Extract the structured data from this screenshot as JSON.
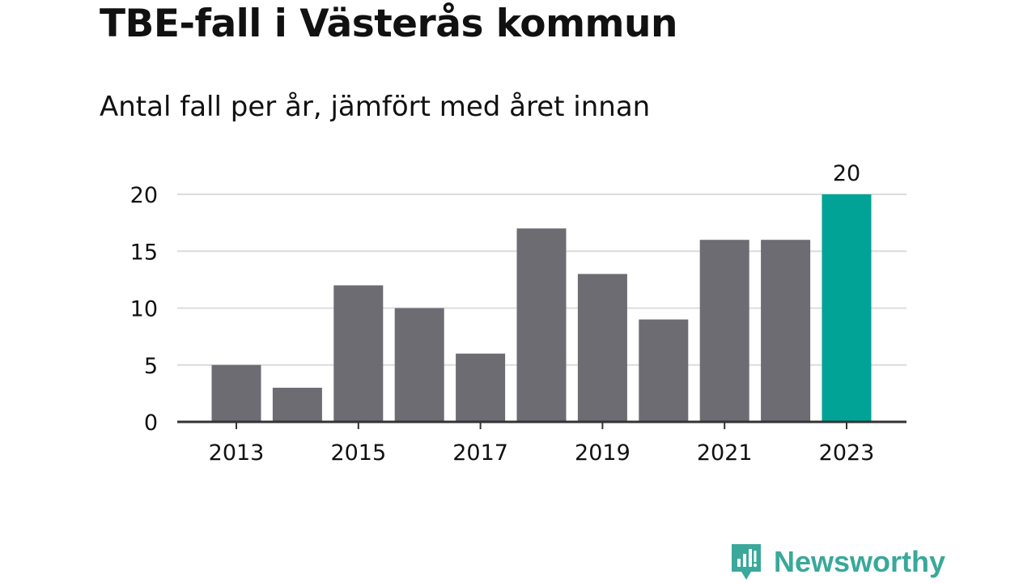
{
  "title": "TBE-fall i Västerås kommun",
  "subtitle": "Antal fall per år, jämfört med året innan",
  "brand": {
    "name": "Newsworthy",
    "icon": "newsworthy-logo-icon",
    "color": "#3aa89a"
  },
  "colors": {
    "bar": "#6d6c73",
    "highlight": "#00a396",
    "grid": "#dcdcdc",
    "axis": "#333333",
    "text": "#111111"
  },
  "chart_data": {
    "type": "bar",
    "title": "TBE-fall i Västerås kommun",
    "subtitle": "Antal fall per år, jämfört med året innan",
    "xlabel": "",
    "ylabel": "",
    "categories": [
      "2013",
      "2014",
      "2015",
      "2016",
      "2017",
      "2018",
      "2019",
      "2020",
      "2021",
      "2022",
      "2023"
    ],
    "values": [
      5,
      3,
      12,
      10,
      6,
      17,
      13,
      9,
      16,
      16,
      20
    ],
    "highlight_index": 10,
    "data_labels": [
      {
        "index": 10,
        "text": "20"
      }
    ],
    "x_tick_labels": [
      "2013",
      "2015",
      "2017",
      "2019",
      "2021",
      "2023"
    ],
    "y_ticks": [
      0,
      5,
      10,
      15,
      20
    ],
    "ylim": [
      0,
      20
    ],
    "grid": true,
    "legend": "none"
  }
}
